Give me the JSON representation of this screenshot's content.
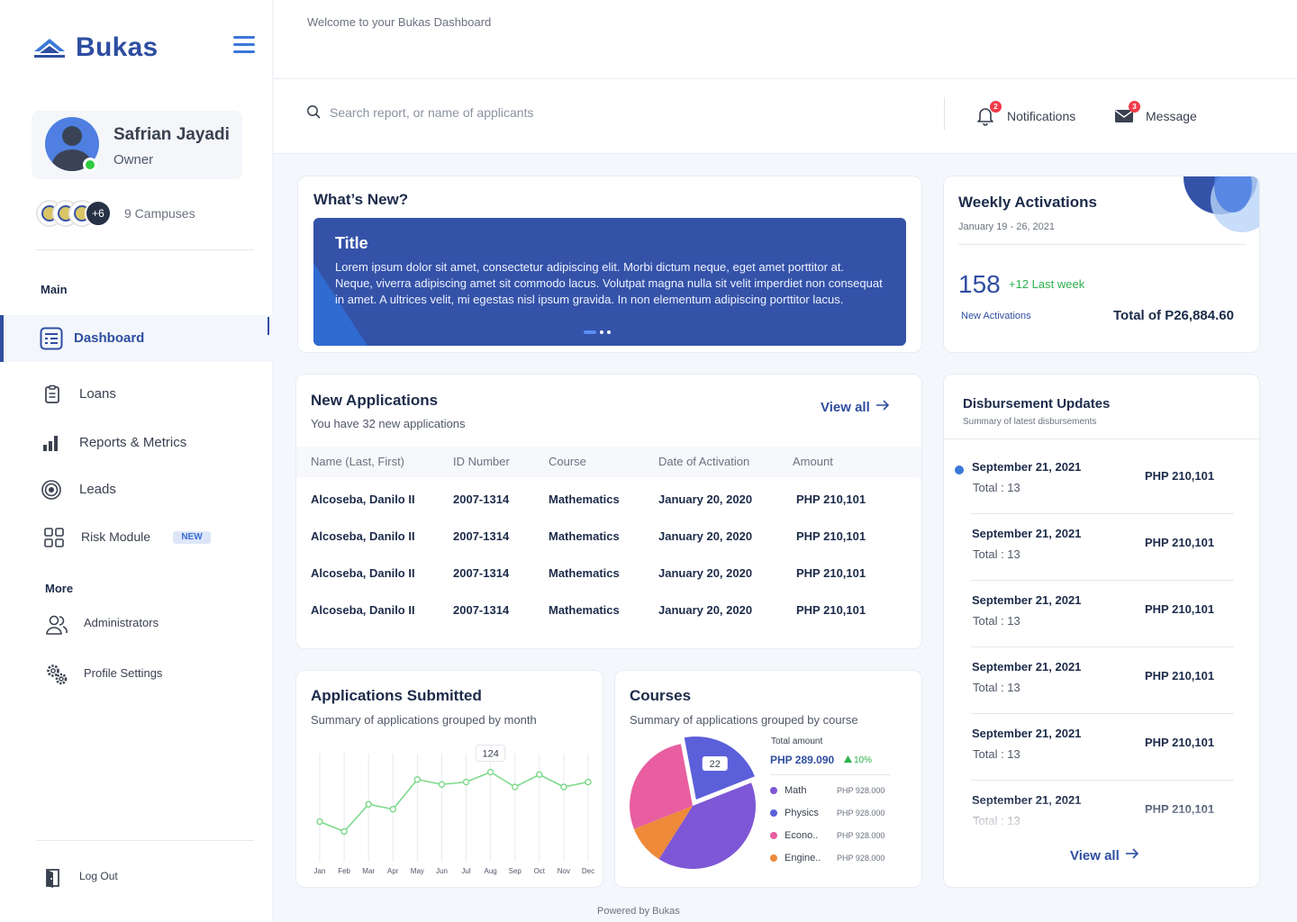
{
  "brand": {
    "name": "Bukas",
    "accent": "#2f4ea1",
    "success": "#2bb24c",
    "danger": "#ef3b4a"
  },
  "header": {
    "welcome": "Welcome to your Bukas Dashboard",
    "search_placeholder": "Search report, or name of applicants",
    "notifications": {
      "label": "Notifications",
      "count": "2",
      "icon": "bell-icon"
    },
    "message": {
      "label": "Message",
      "count": "3",
      "icon": "mail-icon"
    }
  },
  "profile": {
    "name": "Safrian Jayadi",
    "role": "Owner",
    "status": "online"
  },
  "campuses": {
    "more": "+6",
    "label": "9 Campuses"
  },
  "sidebar": {
    "main_label": "Main",
    "more_label": "More",
    "items": [
      {
        "label": "Dashboard",
        "icon": "dashboard-icon",
        "active": true
      },
      {
        "label": "Loans",
        "icon": "clipboard-icon"
      },
      {
        "label": "Reports & Metrics",
        "icon": "bar-chart-icon"
      },
      {
        "label": "Leads",
        "icon": "target-icon"
      },
      {
        "label": "Risk Module",
        "icon": "grid-icon",
        "badge": "NEW"
      }
    ],
    "more_items": [
      {
        "label": "Administrators",
        "icon": "users-icon"
      },
      {
        "label": "Profile Settings",
        "icon": "gears-icon"
      }
    ],
    "logout": "Log Out"
  },
  "whats_new": {
    "heading": "What’s New?",
    "banner_title": "Title",
    "banner_text": "Lorem ipsum dolor sit amet, consectetur adipiscing elit. Morbi dictum neque, eget amet porttitor at. Neque, viverra adipiscing amet sit commodo lacus. Volutpat magna nulla sit velit imperdiet non consequat in amet. A ultrices velit, mi egestas nisl ipsum gravida. In non elementum adipiscing porttitor lacus."
  },
  "weekly": {
    "title": "Weekly Activations",
    "range": "January 19 - 26, 2021",
    "count": "158",
    "delta": "+12 Last week",
    "label": "New Activations",
    "total": "Total of P26,884.60"
  },
  "applications": {
    "title": "New Applications",
    "subtitle": "You have 32 new applications",
    "view_all": "View all",
    "columns": [
      "Name (Last, First)",
      "ID Number",
      "Course",
      "Date of Activation",
      "Amount"
    ],
    "rows": [
      [
        "Alcoseba, Danilo II",
        "2007-1314",
        "Mathematics",
        "January 20, 2020",
        "PHP 210,101"
      ],
      [
        "Alcoseba, Danilo II",
        "2007-1314",
        "Mathematics",
        "January 20, 2020",
        "PHP 210,101"
      ],
      [
        "Alcoseba, Danilo II",
        "2007-1314",
        "Mathematics",
        "January 20, 2020",
        "PHP 210,101"
      ],
      [
        "Alcoseba, Danilo II",
        "2007-1314",
        "Mathematics",
        "January 20, 2020",
        "PHP 210,101"
      ]
    ]
  },
  "submitted": {
    "title": "Applications Submitted",
    "subtitle": "Summary of applications grouped by month",
    "tooltip": "124"
  },
  "courses": {
    "title": "Courses",
    "subtitle": "Summary of applications grouped by course",
    "total_label": "Total amount",
    "total_value": "PHP 289.090",
    "total_delta": "10%",
    "slice_label": "22",
    "legend": [
      {
        "name": "Math",
        "amount": "PHP 928.000",
        "color": "#7e57d6"
      },
      {
        "name": "Physics",
        "amount": "PHP 928.000",
        "color": "#5b5fd9"
      },
      {
        "name": "Econo..",
        "amount": "PHP 928.000",
        "color": "#e85ea0"
      },
      {
        "name": "Engine..",
        "amount": "PHP 928.000",
        "color": "#ee8a3a"
      }
    ]
  },
  "disbursement": {
    "title": "Disbursement Updates",
    "subtitle": "Summary of latest disbursements",
    "view_all": "View all",
    "items": [
      {
        "date": "September 21, 2021",
        "total": "Total : 13",
        "amount": "PHP 210,101",
        "latest": true
      },
      {
        "date": "September 21, 2021",
        "total": "Total : 13",
        "amount": "PHP 210,101"
      },
      {
        "date": "September 21, 2021",
        "total": "Total : 13",
        "amount": "PHP 210,101"
      },
      {
        "date": "September 21, 2021",
        "total": "Total : 13",
        "amount": "PHP 210,101"
      },
      {
        "date": "September 21, 2021",
        "total": "Total : 13",
        "amount": "PHP 210,101"
      },
      {
        "date": "September 21, 2021",
        "total": "Total : 13",
        "amount": "PHP 210,101"
      }
    ]
  },
  "footer": "Powered by Bukas",
  "chart_data": [
    {
      "type": "line",
      "title": "Applications Submitted",
      "categories": [
        "Jan",
        "Feb",
        "Mar",
        "Apr",
        "May",
        "Jun",
        "Jul",
        "Aug",
        "Sep",
        "Oct",
        "Nov",
        "Dec"
      ],
      "values": [
        104,
        100,
        111,
        109,
        121,
        119,
        120,
        124,
        118,
        123,
        118,
        120
      ],
      "ylim": [
        90,
        130
      ],
      "color": "#7ed98a",
      "highlight_index": 7,
      "grid": "vertical"
    },
    {
      "type": "pie",
      "title": "Courses",
      "categories": [
        "Math",
        "Physics",
        "Econo..",
        "Engine.."
      ],
      "values": [
        40,
        22,
        28,
        10
      ],
      "colors": [
        "#7e57d6",
        "#5b5fd9",
        "#e85ea0",
        "#ee8a3a"
      ]
    }
  ]
}
